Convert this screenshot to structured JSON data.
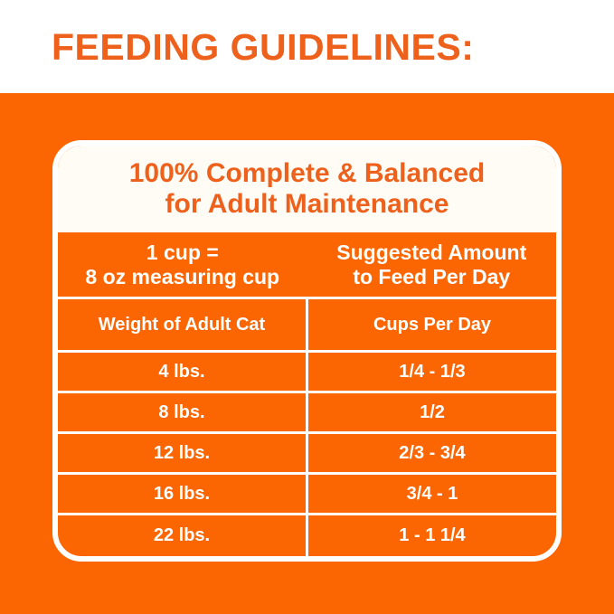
{
  "colors": {
    "background_orange": "#fb6602",
    "title_orange": "#ee611c",
    "panel_header_bg": "#fffcf6",
    "grid_white": "#ffffff",
    "text_white": "#ffffff"
  },
  "header": {
    "title": "FEEDING GUIDELINES:"
  },
  "panel": {
    "heading_line1": "100% Complete & Balanced",
    "heading_line2": "for Adult Maintenance",
    "cup_note_line1": "1 cup =",
    "cup_note_line2": "8 oz measuring cup",
    "amount_line1": "Suggested Amount",
    "amount_line2": "to Feed Per Day",
    "col_weight": "Weight of Adult Cat",
    "col_cups": "Cups Per Day",
    "rows": [
      {
        "weight": "4 lbs.",
        "cups": "1/4 - 1/3"
      },
      {
        "weight": "8 lbs.",
        "cups": "1/2"
      },
      {
        "weight": "12 lbs.",
        "cups": "2/3 - 3/4"
      },
      {
        "weight": "16 lbs.",
        "cups": "3/4 - 1"
      },
      {
        "weight": "22 lbs.",
        "cups": "1 - 1 1/4"
      }
    ]
  },
  "chart_data": {
    "type": "table",
    "title": "FEEDING GUIDELINES:",
    "subtitle": "100% Complete & Balanced for Adult Maintenance",
    "notes": [
      "1 cup = 8 oz measuring cup",
      "Suggested Amount to Feed Per Day"
    ],
    "columns": [
      "Weight of Adult Cat",
      "Cups Per Day"
    ],
    "rows": [
      [
        "4 lbs.",
        "1/4 - 1/3"
      ],
      [
        "8 lbs.",
        "1/2"
      ],
      [
        "12 lbs.",
        "2/3 - 3/4"
      ],
      [
        "16 lbs.",
        "3/4 - 1"
      ],
      [
        "22 lbs.",
        "1 - 1 1/4"
      ]
    ]
  }
}
